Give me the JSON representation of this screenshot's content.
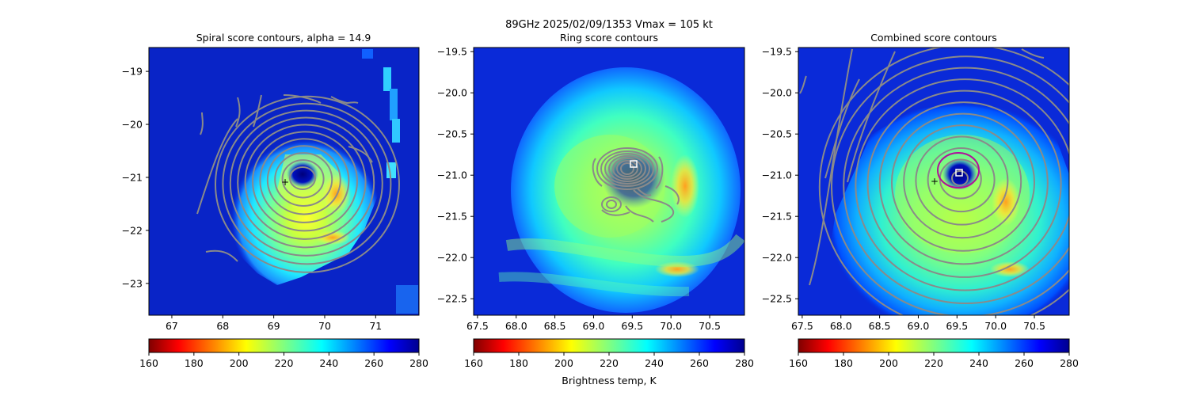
{
  "figure": {
    "suptitle_line": "89GHz  2025/02/09/1353    Vmax = 105 kt",
    "colorbar_label": "Brightness temp, K"
  },
  "colors": {
    "contour": "#8a8a8a",
    "ring": "#b0129a",
    "marker": "#ffffff",
    "axis": "#000000",
    "jet": [
      "#800000",
      "#ff0000",
      "#ff8000",
      "#ffff00",
      "#80ff80",
      "#00ffff",
      "#0080ff",
      "#0000ff",
      "#00008f"
    ]
  },
  "chart_data": [
    {
      "type": "heatmap",
      "title": "Spiral score contours, alpha = 14.9",
      "xlim": [
        66.55,
        71.85
      ],
      "ylim": [
        -23.6,
        -18.55
      ],
      "xticks": [
        67,
        68,
        69,
        70,
        71
      ],
      "yticks": [
        -19,
        -20,
        -21,
        -22,
        -23
      ],
      "xtick_labels": [
        "67",
        "68",
        "69",
        "70",
        "71"
      ],
      "ytick_labels": [
        "−19",
        "−20",
        "−21",
        "−22",
        "−23"
      ],
      "eye_center": [
        69.55,
        -21.05
      ],
      "center_marker": [
        69.2,
        -21.1
      ],
      "colorbar": {
        "range": [
          160,
          280
        ],
        "ticks": [
          160,
          180,
          200,
          220,
          240,
          260,
          280
        ],
        "tick_labels": [
          "160",
          "180",
          "200",
          "220",
          "240",
          "260",
          "280"
        ]
      }
    },
    {
      "type": "heatmap",
      "title": "Ring score contours",
      "xlim": [
        67.45,
        70.95
      ],
      "ylim": [
        -22.7,
        -19.45
      ],
      "xticks": [
        67.5,
        68.0,
        68.5,
        69.0,
        69.5,
        70.0,
        70.5
      ],
      "yticks": [
        -19.5,
        -20.0,
        -20.5,
        -21.0,
        -21.5,
        -22.0,
        -22.5
      ],
      "xtick_labels": [
        "67.5",
        "68.0",
        "68.5",
        "69.0",
        "69.5",
        "70.0",
        "70.5"
      ],
      "ytick_labels": [
        "−19.5",
        "−20.0",
        "−20.5",
        "−21.0",
        "−21.5",
        "−22.0",
        "−22.5"
      ],
      "eye_center": [
        69.5,
        -20.95
      ],
      "ring_center": [
        69.5,
        -20.9
      ],
      "colorbar": {
        "range": [
          160,
          280
        ],
        "ticks": [
          160,
          180,
          200,
          220,
          240,
          260,
          280
        ],
        "tick_labels": [
          "160",
          "180",
          "200",
          "220",
          "240",
          "260",
          "280"
        ]
      }
    },
    {
      "type": "heatmap",
      "title": "Combined score contours",
      "xlim": [
        67.45,
        70.95
      ],
      "ylim": [
        -22.7,
        -19.45
      ],
      "xticks": [
        67.5,
        68.0,
        68.5,
        69.0,
        69.5,
        70.0,
        70.5
      ],
      "yticks": [
        -19.5,
        -20.0,
        -20.5,
        -21.0,
        -21.5,
        -22.0,
        -22.5
      ],
      "xtick_labels": [
        "67.5",
        "68.0",
        "68.5",
        "69.0",
        "69.5",
        "70.0",
        "70.5"
      ],
      "ytick_labels": [
        "−19.5",
        "−20.0",
        "−20.5",
        "−21.0",
        "−21.5",
        "−22.0",
        "−22.5"
      ],
      "eye_center": [
        69.5,
        -21.0
      ],
      "ring_center": [
        69.5,
        -21.0
      ],
      "center_marker": [
        69.2,
        -21.1
      ],
      "colorbar": {
        "range": [
          160,
          280
        ],
        "ticks": [
          160,
          180,
          200,
          220,
          240,
          260,
          280
        ],
        "tick_labels": [
          "160",
          "180",
          "200",
          "220",
          "240",
          "260",
          "280"
        ]
      }
    }
  ]
}
